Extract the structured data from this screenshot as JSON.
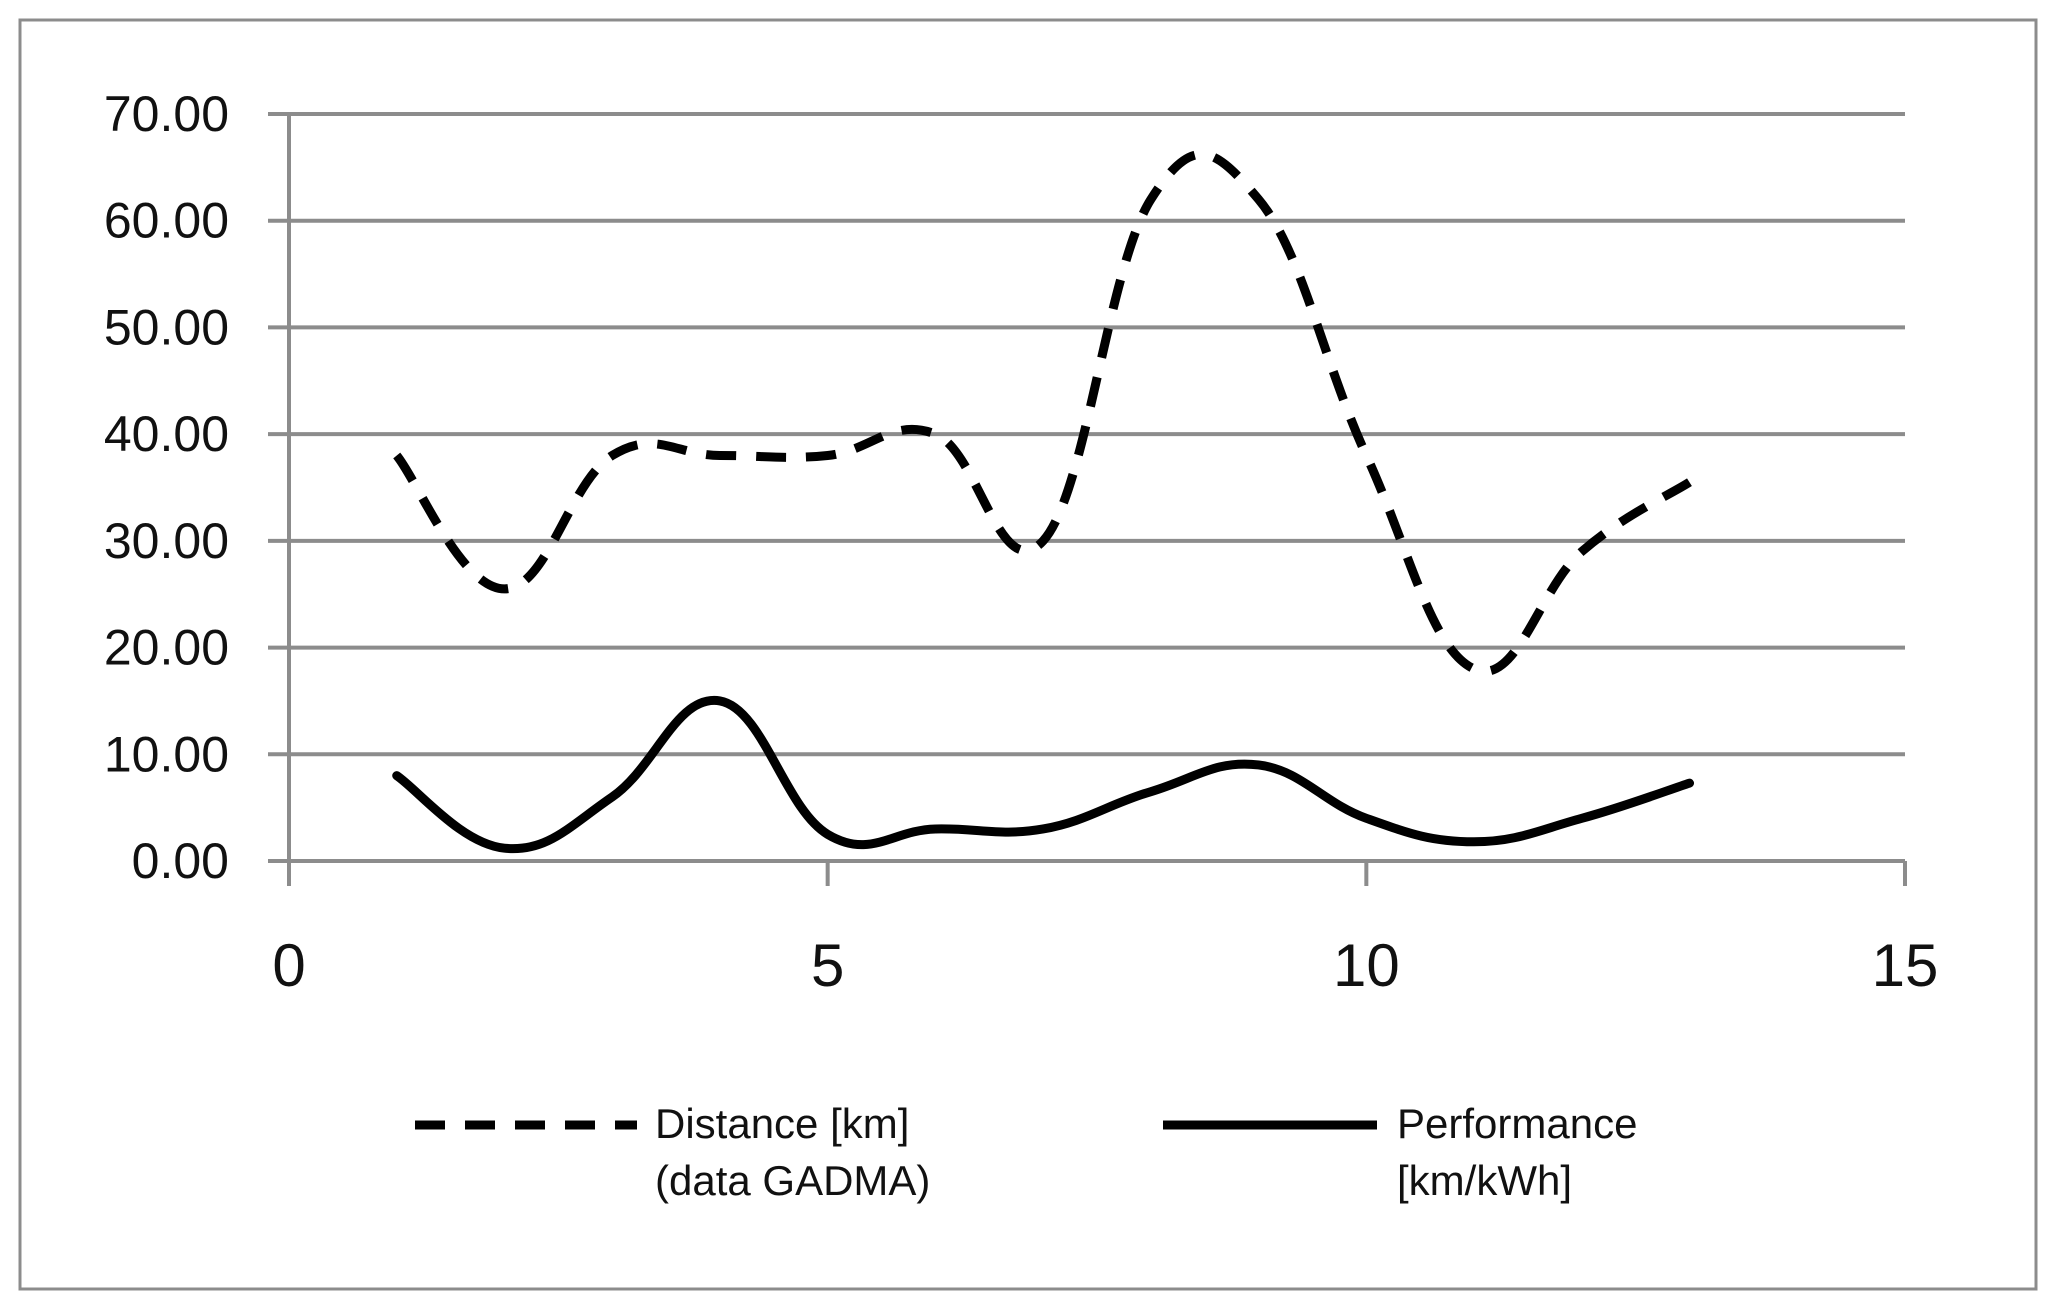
{
  "chart_data": {
    "type": "line",
    "title": "",
    "xlabel": "",
    "ylabel": "",
    "xlim": [
      0,
      15
    ],
    "ylim": [
      0,
      70
    ],
    "x_ticks": [
      0,
      5,
      10,
      15
    ],
    "x_tick_labels": [
      "0",
      "5",
      "10",
      "15"
    ],
    "y_ticks": [
      0,
      10,
      20,
      30,
      40,
      50,
      60,
      70
    ],
    "y_tick_labels": [
      "0.00",
      "10.00",
      "20.00",
      "30.00",
      "40.00",
      "50.00",
      "60.00",
      "70.00"
    ],
    "grid": "horizontal",
    "legend_position": "bottom",
    "series": [
      {
        "name": "Distance [km] (data GADMA)",
        "legend_lines": [
          "Distance [km]",
          "(data GADMA)"
        ],
        "style": "dashed",
        "color": "#000000",
        "x": [
          1,
          2,
          3,
          4,
          5,
          6,
          7,
          8,
          9,
          10,
          11,
          12,
          13
        ],
        "y": [
          38.0,
          25.5,
          38.0,
          38.0,
          38.0,
          40.0,
          30.0,
          62.0,
          62.0,
          38.0,
          18.0,
          29.0,
          35.5
        ]
      },
      {
        "name": "Performance [km/kWh]",
        "legend_lines": [
          "Performance",
          "[km/kWh]"
        ],
        "style": "solid",
        "color": "#000000",
        "x": [
          1,
          2,
          3,
          4,
          5,
          6,
          7,
          8,
          9,
          10,
          11,
          12,
          13
        ],
        "y": [
          8.0,
          1.2,
          6.0,
          15.0,
          2.5,
          3.0,
          3.0,
          6.5,
          9.0,
          4.0,
          1.8,
          4.0,
          7.3
        ]
      }
    ]
  }
}
